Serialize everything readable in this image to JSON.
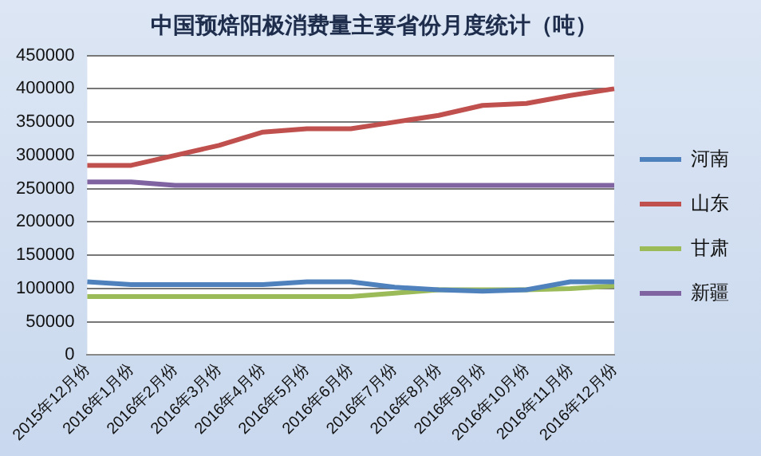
{
  "chart_data": {
    "type": "line",
    "title": "中国预焙阳极消费量主要省份月度统计（吨）",
    "categories": [
      "2015年12月份",
      "2016年1月份",
      "2016年2月份",
      "2016年3月份",
      "2016年4月份",
      "2016年5月份",
      "2016年6月份",
      "2016年7月份",
      "2016年8月份",
      "2016年9月份",
      "2016年10月份",
      "2016年11月份",
      "2016年12月份"
    ],
    "series": [
      {
        "name": "河南",
        "color": "#4f81bd",
        "values": [
          110000,
          106000,
          106000,
          106000,
          106000,
          110000,
          110000,
          102000,
          98000,
          96000,
          98000,
          110000,
          110000
        ]
      },
      {
        "name": "山东",
        "color": "#c0504d",
        "values": [
          285000,
          285000,
          300000,
          315000,
          335000,
          340000,
          340000,
          350000,
          360000,
          375000,
          378000,
          390000,
          400000
        ]
      },
      {
        "name": "甘肃",
        "color": "#9bbb59",
        "values": [
          88000,
          88000,
          88000,
          88000,
          88000,
          88000,
          88000,
          93000,
          98000,
          98000,
          98000,
          100000,
          104000
        ]
      },
      {
        "name": "新疆",
        "color": "#8064a2",
        "values": [
          260000,
          260000,
          255000,
          255000,
          255000,
          255000,
          255000,
          255000,
          255000,
          255000,
          255000,
          255000,
          255000
        ]
      }
    ],
    "ylim": [
      0,
      450000
    ],
    "yticks": [
      0,
      50000,
      100000,
      150000,
      200000,
      250000,
      300000,
      350000,
      400000,
      450000
    ],
    "grid": "y",
    "legend": "right",
    "marker": "none",
    "line_style": "solid"
  }
}
